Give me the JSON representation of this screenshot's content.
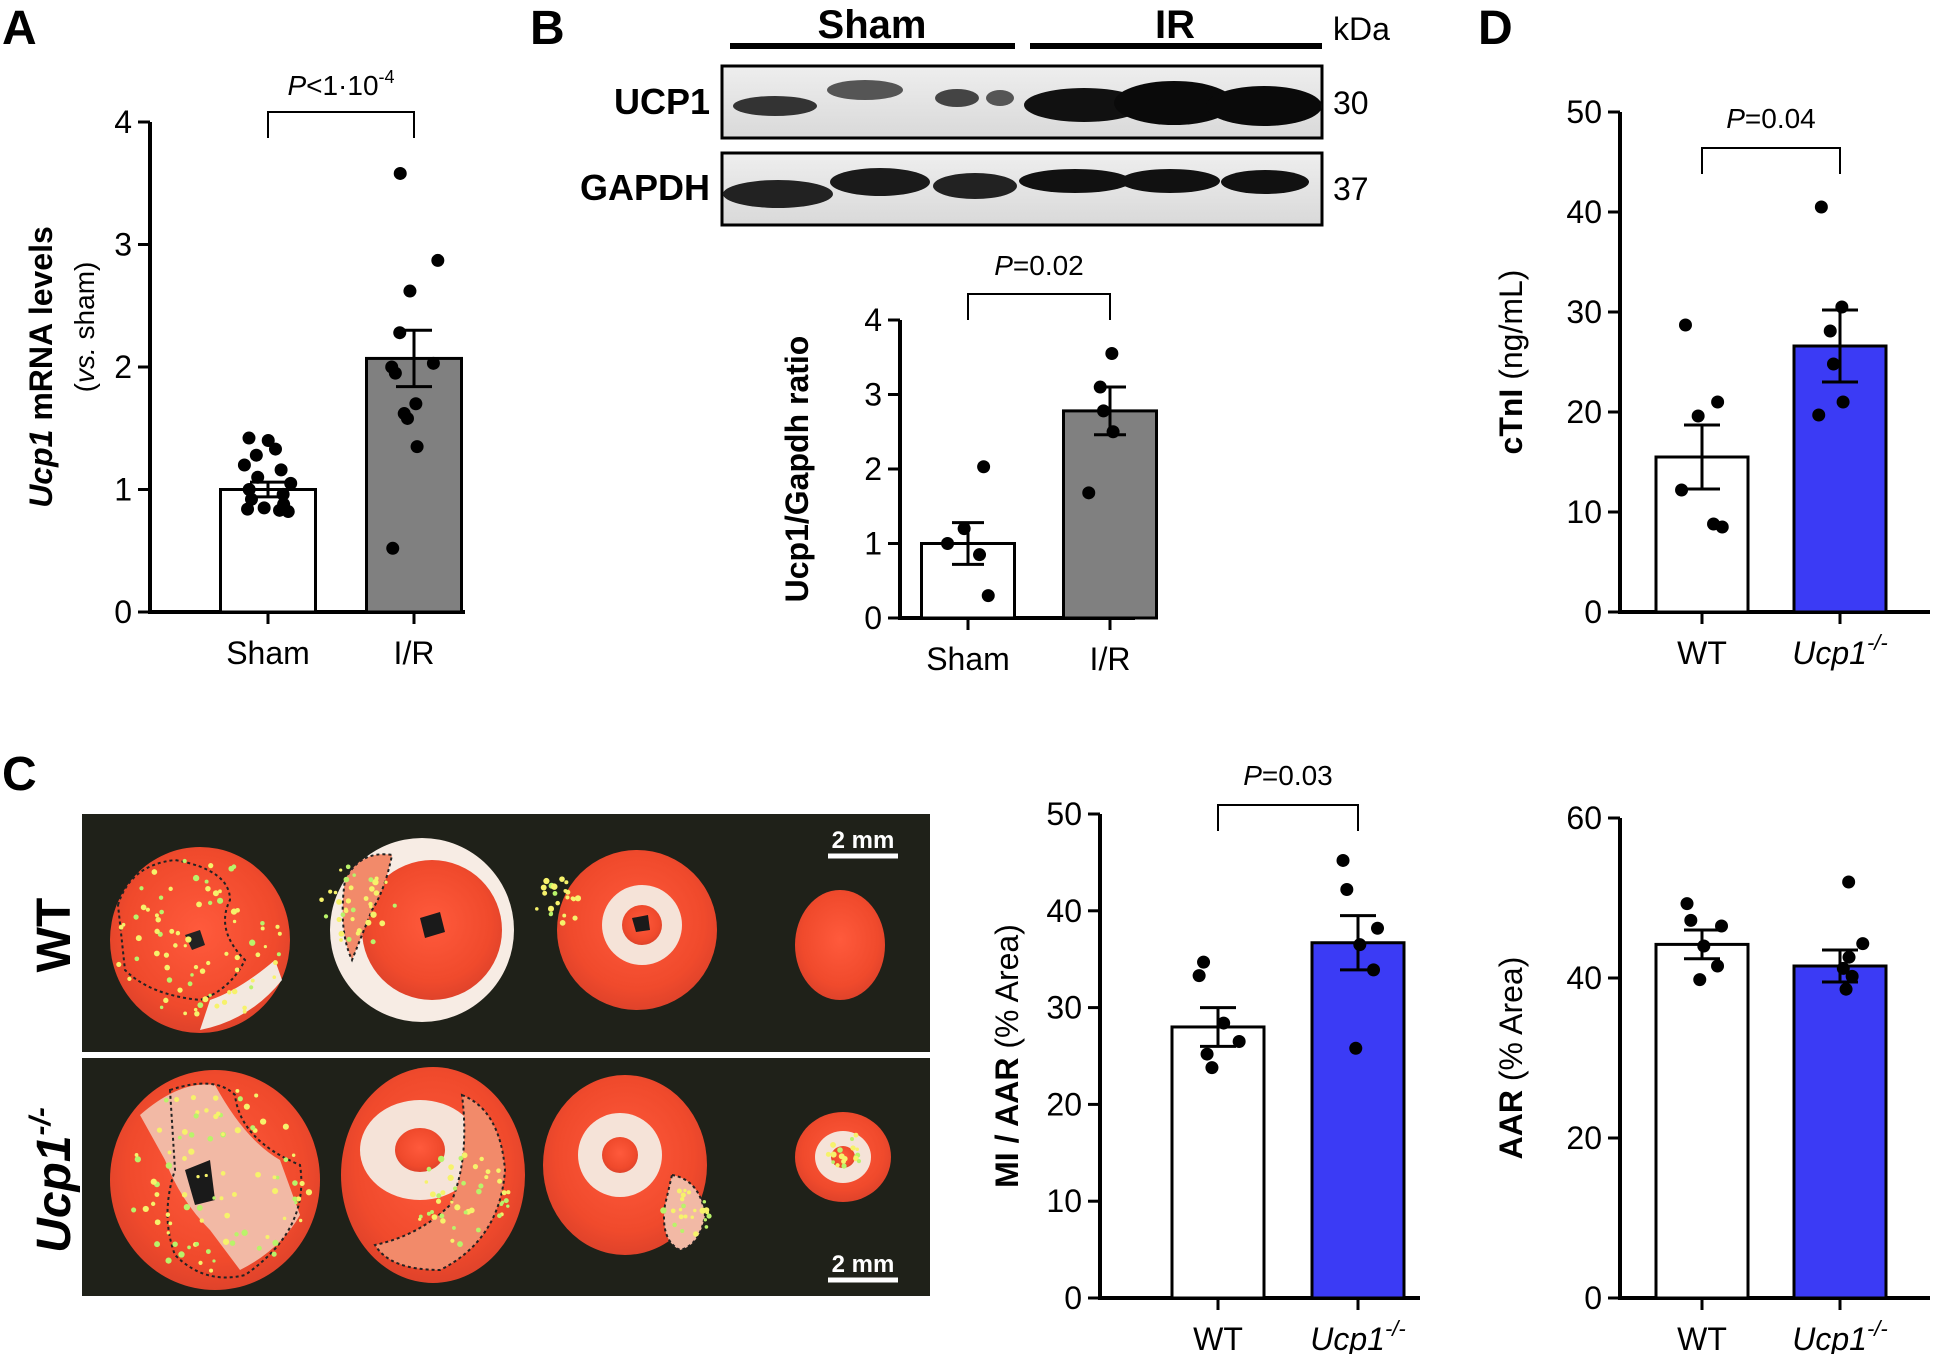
{
  "panel_labels": {
    "a": "A",
    "b": "B",
    "c": "C",
    "d": "D"
  },
  "colors": {
    "sham": "#ffffff",
    "ir": "#808080",
    "wt": "#ffffff",
    "ko": "#3b3bf5"
  },
  "blot": {
    "group_sham": "Sham",
    "group_ir": "IR",
    "kda_label": "kDa",
    "rows": [
      {
        "label": "UCP1",
        "kda": "30"
      },
      {
        "label": "GAPDH",
        "kda": "37"
      }
    ]
  },
  "micrograph": {
    "row_labels": {
      "wt": "WT",
      "ko_italic": "Ucp1",
      "ko_sup": "-/-"
    },
    "scale_bar": "2 mm"
  },
  "chart_data": [
    {
      "id": "A",
      "type": "bar",
      "categories": [
        "Sham",
        "I/R"
      ],
      "values": [
        1.0,
        2.07
      ],
      "errors": [
        0.06,
        0.23
      ],
      "points": [
        [
          0.82,
          0.83,
          0.84,
          0.85,
          0.88,
          0.92,
          0.96,
          1.0,
          1.05,
          1.1,
          1.16,
          1.2,
          1.28,
          1.33,
          1.4,
          1.42
        ],
        [
          0.52,
          1.35,
          1.58,
          1.62,
          1.7,
          1.95,
          2.0,
          2.03,
          2.28,
          2.62,
          2.87,
          3.58
        ]
      ],
      "ylim": [
        0,
        4
      ],
      "yticks": [
        0,
        1,
        2,
        3,
        4
      ],
      "ylabel_italic": "Ucp1",
      "ylabel_rest": " mRNA levels",
      "ylabel2_italic": "vs.",
      "ylabel2_rest": " sham)",
      "ylabel2_open": "(",
      "pvalue": {
        "p": "P",
        "text": "<1·10",
        "exp": "-4"
      }
    },
    {
      "id": "B",
      "type": "bar",
      "categories": [
        "Sham",
        "I/R"
      ],
      "values": [
        1.0,
        2.78
      ],
      "errors": [
        0.28,
        0.32
      ],
      "points": [
        [
          0.3,
          0.85,
          1.0,
          1.2,
          2.03
        ],
        [
          1.68,
          2.5,
          2.78,
          3.1,
          3.55
        ]
      ],
      "ylim": [
        0,
        4
      ],
      "yticks": [
        0,
        1,
        2,
        3,
        4
      ],
      "ylabel": "Ucp1/Gapdh ratio",
      "pvalue": {
        "p": "P",
        "text": "=0.02"
      }
    },
    {
      "id": "D",
      "type": "bar",
      "categories": [
        "WT",
        "Ucp1"
      ],
      "category_sup": [
        "",
        "-/-"
      ],
      "values": [
        15.5,
        26.6
      ],
      "errors": [
        3.2,
        3.6
      ],
      "points": [
        [
          8.5,
          8.8,
          12.2,
          19.6,
          21.0,
          28.7
        ],
        [
          19.7,
          21.0,
          24.8,
          28.1,
          30.5,
          40.5
        ]
      ],
      "ylim": [
        0,
        50
      ],
      "yticks": [
        0,
        10,
        20,
        30,
        40,
        50
      ],
      "ylabel": "cTnI (ng/mL)",
      "ylabel_bold": "cTnI",
      "ylabel_rest": " (ng/mL)",
      "pvalue": {
        "p": "P",
        "text": "=0.04"
      }
    },
    {
      "id": "C-MI",
      "type": "bar",
      "categories": [
        "WT",
        "Ucp1"
      ],
      "category_sup": [
        "",
        "-/-"
      ],
      "values": [
        28.0,
        36.7
      ],
      "errors": [
        2.0,
        2.8
      ],
      "points": [
        [
          23.8,
          25.2,
          26.5,
          28.4,
          33.3,
          34.7
        ],
        [
          25.8,
          33.9,
          36.5,
          38.2,
          42.2,
          45.2
        ]
      ],
      "ylim": [
        0,
        50
      ],
      "yticks": [
        0,
        10,
        20,
        30,
        40,
        50
      ],
      "ylabel_bold": "MI / AAR",
      "ylabel_rest": " (% Area)",
      "pvalue": {
        "p": "P",
        "text": "=0.03"
      }
    },
    {
      "id": "C-AAR",
      "type": "bar",
      "categories": [
        "WT",
        "Ucp1"
      ],
      "category_sup": [
        "",
        "-/-"
      ],
      "values": [
        44.2,
        41.5
      ],
      "errors": [
        1.8,
        2.0
      ],
      "points": [
        [
          39.8,
          41.5,
          44.0,
          46.5,
          47.2,
          49.3
        ],
        [
          38.6,
          40.2,
          41.2,
          42.6,
          44.3,
          52.0
        ]
      ],
      "ylim": [
        0,
        60
      ],
      "yticks": [
        0,
        20,
        40,
        60
      ],
      "ylabel_bold": "AAR",
      "ylabel_rest": " (% Area)"
    }
  ]
}
